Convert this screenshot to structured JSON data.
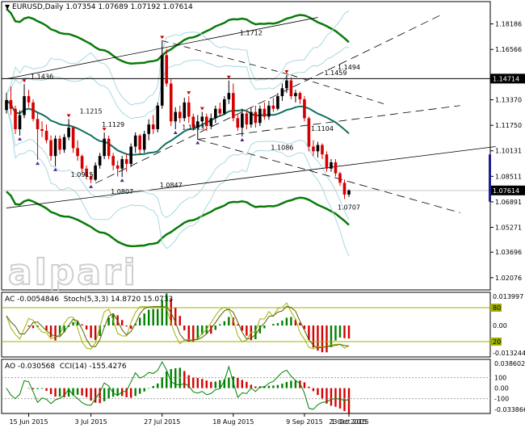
{
  "header": {
    "symbol_text": "EURUSD,Daily",
    "ohlc_text": "1.07354 1.07689 1.07192 1.07614"
  },
  "watermark": "alpari",
  "price_axis_labels": [
    "1.18186",
    "1.16566",
    "1.14714",
    "1.13370",
    "1.11750",
    "1.10131",
    "1.08511",
    "1.07614",
    "1.06891",
    "1.05271",
    "1.03696",
    "1.02076"
  ],
  "current_price": "1.07614",
  "x_axis_labels": [
    "15 Jun 2015",
    "3 Jul 2015",
    "27 Jul 2015",
    "18 Aug 2015",
    "9 Sep 2015",
    "1 Oct 2015",
    "23 Oct 2015"
  ],
  "ac_panel": {
    "title": "AC -0.0054846",
    "stoch_text": "Stoch(5,3,3) 14.8720 15.0733",
    "axis_labels": [
      "0.013997",
      "80",
      "0.00",
      "20",
      "-0.013244"
    ]
  },
  "ao_panel": {
    "title": "AO -0.030568",
    "cci_text": "CCI(14) -155.4276",
    "axis_labels": [
      "0.038602",
      "100",
      "0.00",
      "-100",
      "-0.033866"
    ]
  },
  "colors": {
    "bull": "#000000",
    "bear": "#d40000",
    "envelope": "#0a7a0a",
    "ma": "#107060",
    "bands": "#a8d8e0",
    "osc": "#a0b000",
    "grid": "#e8e8e8"
  },
  "chart_data": {
    "type": "candlestick",
    "symbol": "EURUSD",
    "timeframe": "Daily",
    "last_price": 1.07614,
    "ohlc_last": {
      "open": 1.07354,
      "high": 1.07689,
      "low": 1.07192,
      "close": 1.07614
    },
    "fractal_labels": [
      {
        "date": "2015-06-18",
        "value": 1.1436,
        "text": "1.1436"
      },
      {
        "date": "2015-07-03",
        "value": 1.1215,
        "text": "1.1215"
      },
      {
        "date": "2015-07-01",
        "value": 1.0915,
        "text": "1.0915"
      },
      {
        "date": "2015-07-10",
        "value": 1.1129,
        "text": "1.1129"
      },
      {
        "date": "2015-07-14",
        "value": 1.0807,
        "text": "1.0807"
      },
      {
        "date": "2015-07-29",
        "value": 1.0847,
        "text": "1.0847"
      },
      {
        "date": "2015-08-05",
        "value": 1.1213,
        "text": "1.1213"
      },
      {
        "date": "2015-08-24",
        "value": 1.1712,
        "text": "1.1712"
      },
      {
        "date": "2015-09-02",
        "value": 1.1086,
        "text": "1.1086"
      },
      {
        "date": "2015-09-18",
        "value": 1.1459,
        "text": "1.1459"
      },
      {
        "date": "2015-09-15",
        "value": 1.1104,
        "text": "1.1104"
      },
      {
        "date": "2015-10-15",
        "value": 1.1494,
        "text": "1.1494"
      },
      {
        "date": "2015-10-28",
        "value": 1.0707,
        "text": "1.0707"
      }
    ],
    "horizontal_level": 1.14714,
    "y_range": [
      1.0135,
      1.195
    ],
    "candles": [
      [
        1.1272,
        1.138,
        1.125,
        1.1335
      ],
      [
        1.1335,
        1.142,
        1.124,
        1.128
      ],
      [
        1.128,
        1.13,
        1.112,
        1.115
      ],
      [
        1.115,
        1.127,
        1.111,
        1.124
      ],
      [
        1.124,
        1.1436,
        1.122,
        1.136
      ],
      [
        1.136,
        1.14,
        1.129,
        1.132
      ],
      [
        1.132,
        1.134,
        1.12,
        1.1215
      ],
      [
        1.1215,
        1.126,
        1.0955,
        1.115
      ],
      [
        1.115,
        1.12,
        1.11,
        1.114
      ],
      [
        1.114,
        1.118,
        1.106,
        1.108
      ],
      [
        1.108,
        1.111,
        1.095,
        1.098
      ],
      [
        1.098,
        1.111,
        1.0915,
        1.109
      ],
      [
        1.109,
        1.111,
        1.099,
        1.102
      ],
      [
        1.102,
        1.112,
        1.1,
        1.11
      ],
      [
        1.11,
        1.1215,
        1.108,
        1.116
      ],
      [
        1.116,
        1.117,
        1.1,
        1.103
      ],
      [
        1.103,
        1.108,
        1.095,
        1.098
      ],
      [
        1.098,
        1.099,
        1.087,
        1.09
      ],
      [
        1.09,
        1.092,
        1.083,
        1.085
      ],
      [
        1.085,
        1.087,
        1.0807,
        1.083
      ],
      [
        1.083,
        1.094,
        1.082,
        1.092
      ],
      [
        1.092,
        1.1,
        1.09,
        1.098
      ],
      [
        1.098,
        1.1129,
        1.096,
        1.109
      ],
      [
        1.109,
        1.111,
        1.096,
        1.098
      ],
      [
        1.098,
        1.1,
        1.089,
        1.092
      ],
      [
        1.092,
        1.095,
        1.085,
        1.09
      ],
      [
        1.09,
        1.098,
        1.0847,
        1.096
      ],
      [
        1.096,
        1.099,
        1.088,
        1.093
      ],
      [
        1.093,
        1.106,
        1.091,
        1.104
      ],
      [
        1.104,
        1.113,
        1.1,
        1.111
      ],
      [
        1.111,
        1.112,
        1.099,
        1.102
      ],
      [
        1.102,
        1.114,
        1.1,
        1.112
      ],
      [
        1.112,
        1.1213,
        1.108,
        1.118
      ],
      [
        1.118,
        1.124,
        1.112,
        1.115
      ],
      [
        1.115,
        1.132,
        1.113,
        1.13
      ],
      [
        1.13,
        1.1712,
        1.128,
        1.162
      ],
      [
        1.162,
        1.166,
        1.142,
        1.144
      ],
      [
        1.144,
        1.147,
        1.117,
        1.12
      ],
      [
        1.12,
        1.129,
        1.115,
        1.126
      ],
      [
        1.126,
        1.13,
        1.119,
        1.122
      ],
      [
        1.122,
        1.135,
        1.12,
        1.132
      ],
      [
        1.132,
        1.136,
        1.119,
        1.123
      ],
      [
        1.123,
        1.125,
        1.114,
        1.116
      ],
      [
        1.116,
        1.124,
        1.1086,
        1.12
      ],
      [
        1.12,
        1.126,
        1.116,
        1.123
      ],
      [
        1.123,
        1.125,
        1.114,
        1.117
      ],
      [
        1.117,
        1.125,
        1.115,
        1.122
      ],
      [
        1.122,
        1.13,
        1.119,
        1.128
      ],
      [
        1.128,
        1.132,
        1.123,
        1.125
      ],
      [
        1.125,
        1.136,
        1.124,
        1.134
      ],
      [
        1.134,
        1.1459,
        1.131,
        1.138
      ],
      [
        1.138,
        1.144,
        1.12,
        1.122
      ],
      [
        1.122,
        1.125,
        1.114,
        1.116
      ],
      [
        1.116,
        1.128,
        1.1104,
        1.125
      ],
      [
        1.125,
        1.127,
        1.115,
        1.118
      ],
      [
        1.118,
        1.129,
        1.116,
        1.126
      ],
      [
        1.126,
        1.13,
        1.116,
        1.119
      ],
      [
        1.119,
        1.13,
        1.117,
        1.128
      ],
      [
        1.128,
        1.132,
        1.121,
        1.123
      ],
      [
        1.123,
        1.133,
        1.121,
        1.13
      ],
      [
        1.13,
        1.135,
        1.126,
        1.128
      ],
      [
        1.128,
        1.138,
        1.127,
        1.136
      ],
      [
        1.136,
        1.144,
        1.133,
        1.141
      ],
      [
        1.141,
        1.1494,
        1.138,
        1.146
      ],
      [
        1.146,
        1.148,
        1.134,
        1.136
      ],
      [
        1.136,
        1.14,
        1.132,
        1.138
      ],
      [
        1.138,
        1.139,
        1.131,
        1.134
      ],
      [
        1.134,
        1.136,
        1.12,
        1.122
      ],
      [
        1.122,
        1.123,
        1.101,
        1.104
      ],
      [
        1.104,
        1.108,
        1.098,
        1.101
      ],
      [
        1.101,
        1.107,
        1.097,
        1.105
      ],
      [
        1.105,
        1.106,
        1.096,
        1.099
      ],
      [
        1.099,
        1.101,
        1.088,
        1.09
      ],
      [
        1.09,
        1.096,
        1.088,
        1.094
      ],
      [
        1.094,
        1.096,
        1.085,
        1.087
      ],
      [
        1.087,
        1.088,
        1.079,
        1.081
      ],
      [
        1.081,
        1.083,
        1.0707,
        1.0735
      ],
      [
        1.07354,
        1.07689,
        1.07192,
        1.07614
      ]
    ],
    "indicators": [
      "Envelopes",
      "Moving Average",
      "Bollinger Bands",
      "Fractals",
      "AC",
      "Stoch(5,3,3)",
      "AO",
      "CCI(14)"
    ],
    "ac_last": -0.0054846,
    "stoch_main": 14.872,
    "stoch_signal": 15.0733,
    "stoch_levels": [
      80,
      20
    ],
    "ao_last": -0.030568,
    "cci_last": -155.4276,
    "cci_levels": [
      100,
      -100
    ]
  }
}
